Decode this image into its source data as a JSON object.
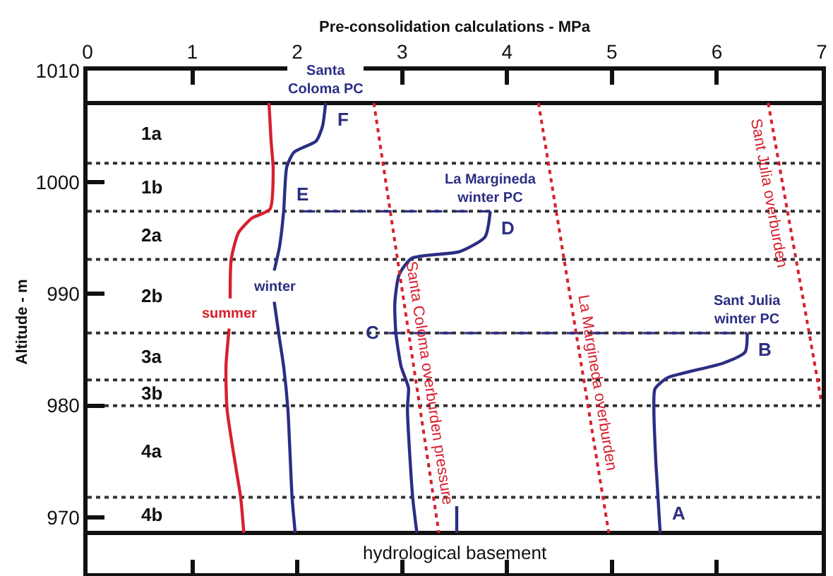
{
  "chart_data": {
    "type": "line",
    "xlabel": "Pre-consolidation calculations - MPa",
    "ylabel": "Altitude - m",
    "xlim": [
      0,
      7
    ],
    "xticks": [
      0,
      1,
      2,
      3,
      4,
      5,
      6,
      7
    ],
    "ylim": [
      965,
      1010
    ],
    "yticks": [
      970,
      980,
      990,
      1000,
      1010
    ],
    "series": [
      {
        "color": "#d7202e",
        "line_style": "solid",
        "x": [
          1.73,
          1.75,
          1.77,
          1.74,
          1.57,
          1.44,
          1.37,
          1.36,
          null,
          1.35,
          1.32,
          1.33,
          1.41,
          1.46,
          1.49
        ],
        "values": [
          1007.1,
          1003.7,
          1001.2,
          997.6,
          996.8,
          995.5,
          993.1,
          989.6,
          null,
          986.9,
          983.5,
          979.7,
          974.7,
          971.8,
          968.6
        ]
      },
      {
        "name": "Santa\nColoma PC",
        "color": "#2b2e83",
        "line_style": "solid",
        "x": [
          2.27,
          2.24,
          2.18,
          1.97,
          1.9,
          1.87,
          1.83,
          1.78,
          null,
          1.78,
          1.83,
          1.87,
          1.91,
          1.95,
          1.98
        ],
        "values": [
          1007.1,
          1005.0,
          1003.7,
          1002.7,
          1001.4,
          997.4,
          994.2,
          992.1,
          null,
          989.3,
          986.0,
          983.5,
          979.7,
          971.8,
          968.6
        ]
      },
      {
        "name": "La Margineda\nwinter PC",
        "color": "#2b2e83",
        "line_style": "solid",
        "x": [
          3.84,
          3.79,
          3.55,
          3.09,
          2.97,
          2.93,
          2.94,
          2.99,
          3.06,
          3.05,
          3.1,
          3.14
        ],
        "values": [
          997.4,
          995.1,
          993.8,
          993.2,
          991.7,
          989.2,
          986.5,
          983.5,
          981.6,
          979.7,
          971.8,
          968.6
        ]
      },
      {
        "name": "Sant Julia\nwinter PC",
        "color": "#2b2e83",
        "line_style": "solid",
        "x": [
          6.29,
          6.27,
          6.06,
          5.53,
          5.41,
          5.4,
          5.42,
          5.46
        ],
        "values": [
          986.5,
          984.8,
          983.8,
          982.5,
          981.5,
          979.7,
          974.7,
          968.6
        ]
      },
      {
        "color": "#2b2e83",
        "line_style": "solid",
        "x": [
          3.52,
          3.52
        ],
        "values": [
          971.0,
          968.6
        ]
      },
      {
        "color": "#2b2e83",
        "line_style": "dashed",
        "x": [
          2.05,
          3.84
        ],
        "values": [
          997.4,
          997.4
        ]
      },
      {
        "color": "#2b2e83",
        "line_style": "dashed",
        "x": [
          2.87,
          6.29
        ],
        "values": [
          986.5,
          986.5
        ]
      },
      {
        "name": "Santa Coloma overburden pressure",
        "color": "#d7202e",
        "line_style": "dotted",
        "x": [
          2.73,
          3.35
        ],
        "values": [
          1007.1,
          968.6
        ]
      },
      {
        "name": "La Margineda overburden",
        "color": "#d7202e",
        "line_style": "dotted",
        "x": [
          4.3,
          4.97
        ],
        "values": [
          1007.1,
          968.6
        ]
      },
      {
        "name": "Sant Julia overburden",
        "color": "#d7202e",
        "line_style": "dotted",
        "x": [
          6.49,
          7.0
        ],
        "values": [
          1007.1,
          980.2
        ]
      }
    ],
    "ref_lines": [
      {
        "axis": "y",
        "value": 1007.1,
        "color": "#111111",
        "line_style": "solid",
        "label": "1a"
      },
      {
        "axis": "y",
        "value": 1001.7,
        "color": "#333333",
        "line_style": "dotted",
        "label": "1b"
      },
      {
        "axis": "y",
        "value": 997.4,
        "color": "#333333",
        "line_style": "dotted",
        "label": "2a"
      },
      {
        "axis": "y",
        "value": 993.1,
        "color": "#333333",
        "line_style": "dotted",
        "label": "2b"
      },
      {
        "axis": "y",
        "value": 986.5,
        "color": "#333333",
        "line_style": "dotted",
        "label": "3a"
      },
      {
        "axis": "y",
        "value": 982.3,
        "color": "#333333",
        "line_style": "dotted",
        "label": "3b"
      },
      {
        "axis": "y",
        "value": 980.0,
        "color": "#333333",
        "line_style": "dotted",
        "label": "4a"
      },
      {
        "axis": "y",
        "value": 971.8,
        "color": "#333333",
        "line_style": "dotted",
        "label": "4b"
      },
      {
        "axis": "y",
        "value": 968.6,
        "color": "#111111",
        "line_style": "solid",
        "label": "hydrological basement"
      }
    ],
    "annotations": [
      {
        "text": "F",
        "x": 2.27,
        "y": 1007.1
      },
      {
        "text": "E",
        "x": 2.05,
        "y": 997.4
      },
      {
        "text": "D",
        "x": 3.84,
        "y": 997.4
      },
      {
        "text": "winter",
        "x": 1.78,
        "y": 989.3
      },
      {
        "text": "summer",
        "x": 1.35,
        "y": 986.9
      },
      {
        "text": "C",
        "x": 2.87,
        "y": 986.5
      },
      {
        "text": "B",
        "x": 6.29,
        "y": 986.5
      },
      {
        "text": "A",
        "x": 5.46,
        "y": 968.6
      }
    ]
  }
}
